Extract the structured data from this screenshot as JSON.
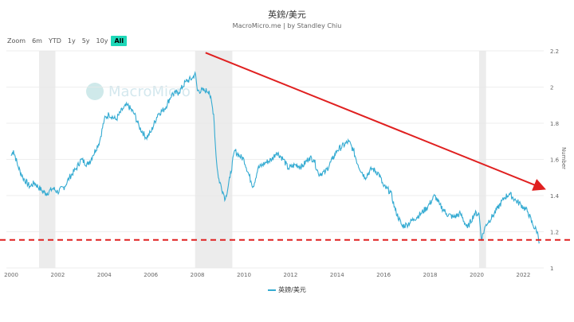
{
  "title": "英鎊/美元",
  "subtitle": "MacroMicro.me | by Standley Chiu",
  "watermark": "MacroMicro",
  "zoom": {
    "label": "Zoom",
    "buttons": [
      "6m",
      "YTD",
      "1y",
      "5y",
      "10y",
      "All"
    ],
    "active": "All"
  },
  "chart_data": {
    "type": "line",
    "title": "英鎊/美元",
    "ylabel": "Number",
    "xlim": [
      2000,
      2022.9
    ],
    "ylim": [
      1,
      2.2
    ],
    "yticks": [
      "1",
      "1.2",
      "1.4",
      "1.6",
      "1.8",
      "2",
      "2.2"
    ],
    "xticks": [
      "2000",
      "2002",
      "2004",
      "2006",
      "2008",
      "2010",
      "2012",
      "2014",
      "2016",
      "2018",
      "2020",
      "2022"
    ],
    "grid": true,
    "legend": "bottom",
    "colors": {
      "series": "#35abd2",
      "annotation": "#e02020",
      "recession": "#ececec"
    },
    "recessions": [
      [
        2001.2,
        2001.9
      ],
      [
        2007.9,
        2009.5
      ],
      [
        2020.1,
        2020.4
      ]
    ],
    "series": [
      {
        "name": "英鎊/美元",
        "x": [
          2000.0,
          2000.1,
          2000.3,
          2000.5,
          2000.8,
          2001.0,
          2001.3,
          2001.5,
          2001.8,
          2002.0,
          2002.3,
          2002.5,
          2002.8,
          2003.0,
          2003.3,
          2003.5,
          2003.8,
          2004.0,
          2004.2,
          2004.5,
          2004.8,
          2005.0,
          2005.3,
          2005.5,
          2005.8,
          2006.0,
          2006.3,
          2006.6,
          2006.9,
          2007.2,
          2007.5,
          2007.8,
          2007.9,
          2008.0,
          2008.3,
          2008.5,
          2008.7,
          2008.8,
          2008.9,
          2009.1,
          2009.2,
          2009.4,
          2009.6,
          2009.8,
          2010.0,
          2010.3,
          2010.4,
          2010.6,
          2010.9,
          2011.2,
          2011.4,
          2011.7,
          2011.9,
          2012.2,
          2012.5,
          2012.8,
          2013.0,
          2013.2,
          2013.5,
          2013.8,
          2014.0,
          2014.5,
          2014.7,
          2014.9,
          2015.2,
          2015.5,
          2015.8,
          2016.0,
          2016.3,
          2016.5,
          2016.8,
          2017.0,
          2017.3,
          2017.6,
          2017.9,
          2018.2,
          2018.4,
          2018.7,
          2019.0,
          2019.3,
          2019.6,
          2019.9,
          2020.1,
          2020.2,
          2020.4,
          2020.7,
          2020.9,
          2021.2,
          2021.4,
          2021.7,
          2021.9,
          2022.2,
          2022.4,
          2022.6,
          2022.7
        ],
        "y": [
          1.62,
          1.65,
          1.56,
          1.5,
          1.45,
          1.47,
          1.43,
          1.41,
          1.44,
          1.42,
          1.45,
          1.5,
          1.55,
          1.6,
          1.57,
          1.62,
          1.7,
          1.82,
          1.85,
          1.82,
          1.88,
          1.9,
          1.85,
          1.78,
          1.72,
          1.75,
          1.85,
          1.88,
          1.96,
          1.97,
          2.03,
          2.05,
          2.08,
          1.98,
          1.98,
          1.98,
          1.85,
          1.62,
          1.5,
          1.42,
          1.38,
          1.5,
          1.65,
          1.62,
          1.6,
          1.48,
          1.45,
          1.55,
          1.58,
          1.6,
          1.64,
          1.6,
          1.55,
          1.57,
          1.56,
          1.61,
          1.6,
          1.52,
          1.53,
          1.6,
          1.65,
          1.7,
          1.65,
          1.57,
          1.5,
          1.55,
          1.52,
          1.45,
          1.42,
          1.32,
          1.23,
          1.24,
          1.27,
          1.3,
          1.34,
          1.4,
          1.35,
          1.3,
          1.28,
          1.3,
          1.22,
          1.3,
          1.3,
          1.16,
          1.24,
          1.29,
          1.33,
          1.39,
          1.41,
          1.37,
          1.35,
          1.31,
          1.24,
          1.2,
          1.14
        ]
      }
    ],
    "annotations": {
      "trend_arrow": {
        "from": [
          2008.35,
          2.19
        ],
        "to": [
          2022.85,
          1.44
        ]
      },
      "support_line": {
        "y": 1.155
      }
    }
  }
}
